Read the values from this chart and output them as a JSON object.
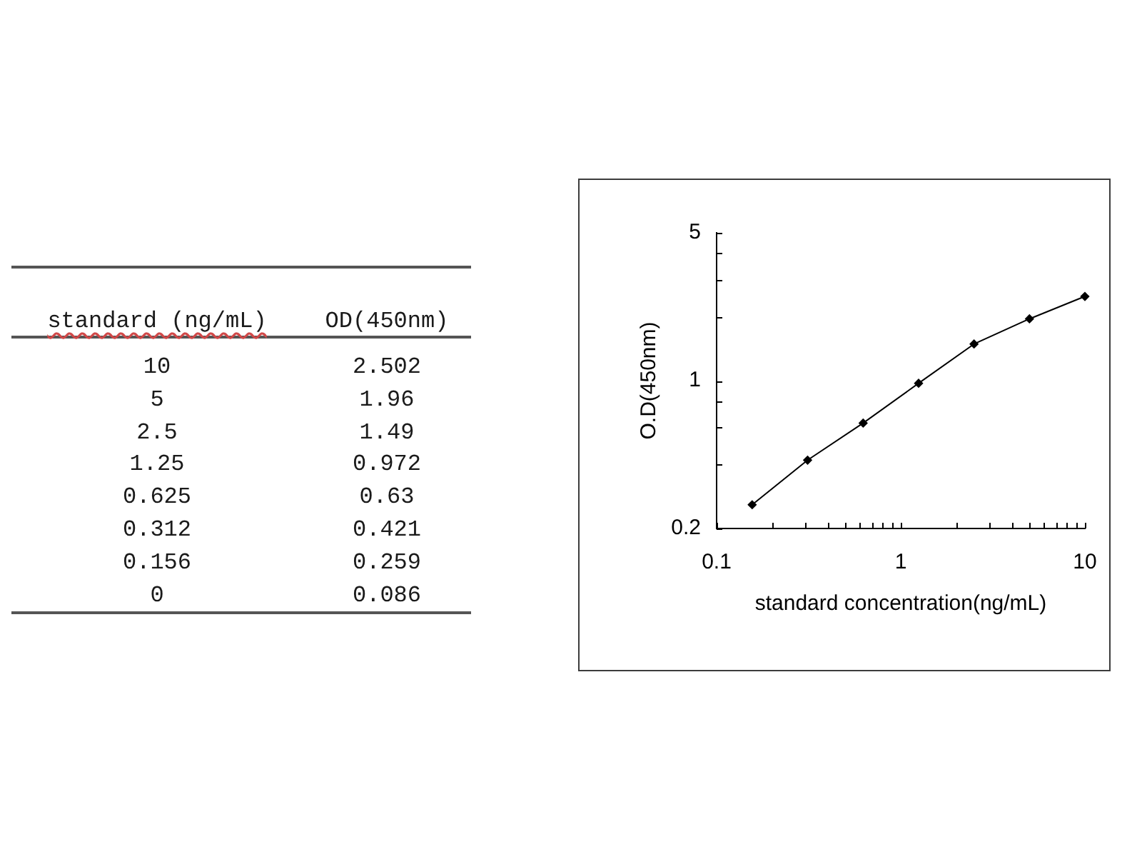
{
  "chart_data": [
    {
      "type": "other",
      "xlabel": "standard (ng/mL)",
      "ylabel": "OD(450nm)",
      "categories": [
        "10",
        "5",
        "2.5",
        "1.25",
        "0.625",
        "0.312",
        "0.156",
        "0"
      ],
      "values": [
        2.502,
        1.96,
        1.49,
        0.972,
        0.63,
        0.421,
        0.259,
        0.086
      ],
      "data_labels": true
    },
    {
      "type": "line",
      "xlabel": "standard concentration(ng/mL)",
      "ylabel": "O.D(450nm)",
      "x": [
        0.156,
        0.312,
        0.625,
        1.25,
        2.5,
        5,
        10
      ],
      "values": [
        0.259,
        0.421,
        0.63,
        0.972,
        1.49,
        1.96,
        2.502
      ],
      "color": "#000000",
      "marker": "diamond",
      "log": "xy",
      "xlim": [
        0.1,
        10
      ],
      "ylim": [
        0.2,
        5
      ],
      "xticks": [
        0.1,
        {
          "value": 0.2,
          "label": null
        },
        {
          "value": 0.3,
          "label": null
        },
        {
          "value": 0.4,
          "label": null
        },
        {
          "value": 0.5,
          "label": null
        },
        {
          "value": 0.6,
          "label": null
        },
        {
          "value": 0.7,
          "label": null
        },
        {
          "value": 0.8,
          "label": null
        },
        {
          "value": 0.9,
          "label": null
        },
        1,
        {
          "value": 2,
          "label": null
        },
        {
          "value": 3,
          "label": null
        },
        {
          "value": 4,
          "label": null
        },
        {
          "value": 5,
          "label": null
        },
        {
          "value": 6,
          "label": null
        },
        {
          "value": 7,
          "label": null
        },
        {
          "value": 8,
          "label": null
        },
        {
          "value": 9,
          "label": null
        },
        10
      ],
      "yticks": [
        0.2,
        {
          "value": 0.4,
          "label": null
        },
        {
          "value": 0.6,
          "label": null
        },
        {
          "value": 0.8,
          "label": null
        },
        1,
        {
          "value": 2,
          "label": null
        },
        {
          "value": 3,
          "label": null
        },
        {
          "value": 4,
          "label": null
        },
        5
      ],
      "grid": false,
      "legend": false
    }
  ]
}
